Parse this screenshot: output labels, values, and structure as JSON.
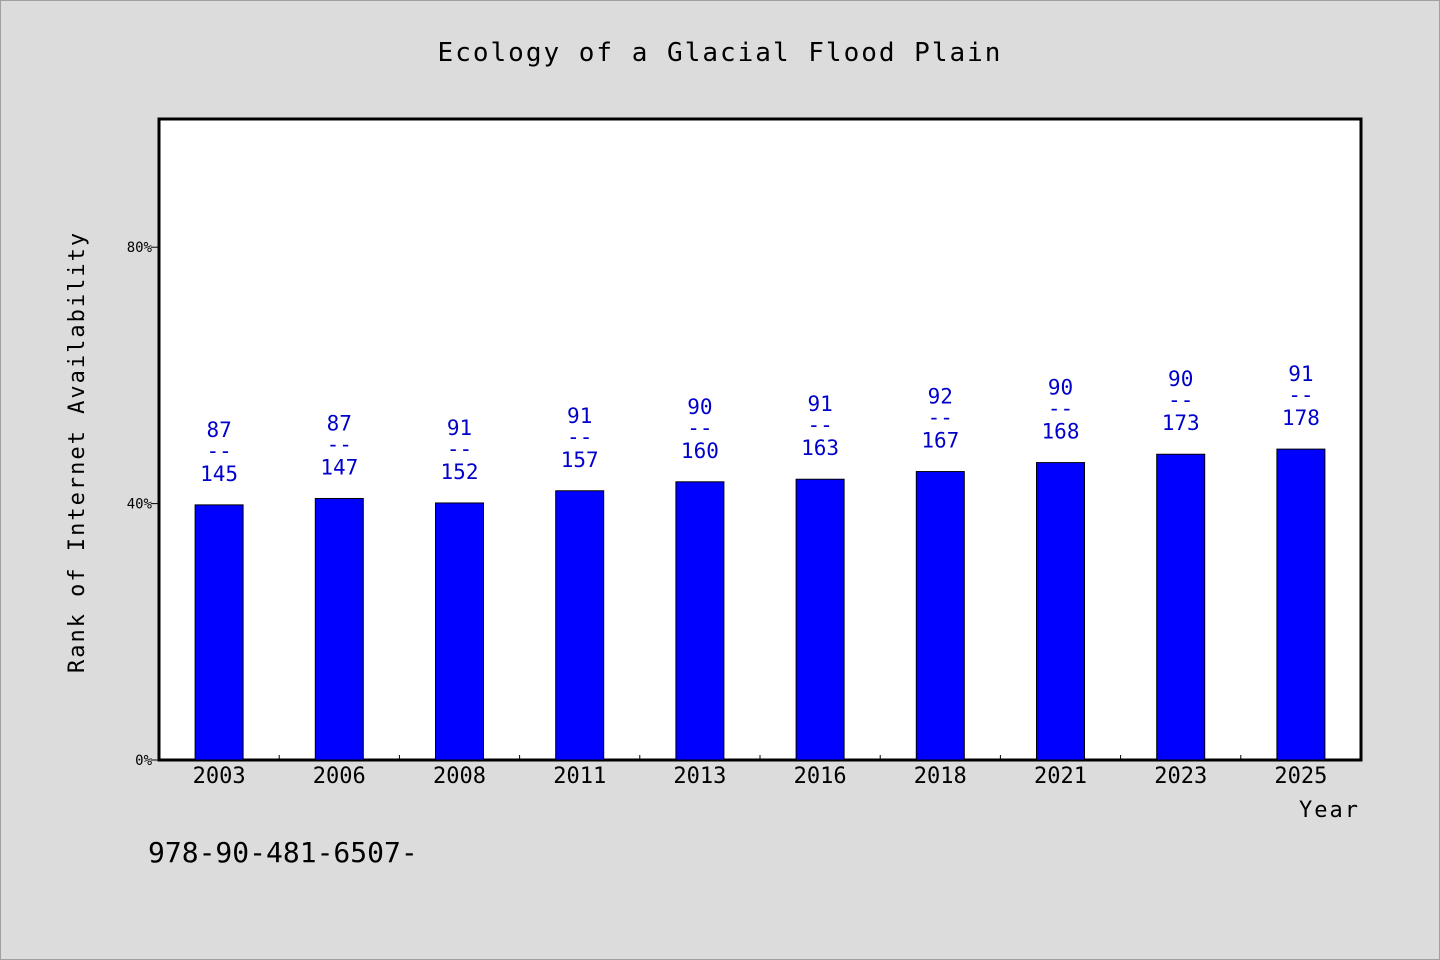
{
  "chart_data": {
    "type": "bar",
    "title": "Ecology of a Glacial Flood Plain",
    "xlabel": "Year",
    "ylabel": "Rank of Internet Availability",
    "categories": [
      "2003",
      "2006",
      "2008",
      "2011",
      "2013",
      "2016",
      "2018",
      "2021",
      "2023",
      "2025"
    ],
    "series": [
      {
        "values": [
          39.8,
          40.8,
          40.1,
          42.0,
          43.4,
          43.8,
          45.0,
          46.4,
          47.7,
          48.5
        ],
        "color": "#0000ff"
      }
    ],
    "data_labels": [
      {
        "top": "87",
        "sep": "--",
        "bottom": "145"
      },
      {
        "top": "87",
        "sep": "--",
        "bottom": "147"
      },
      {
        "top": "91",
        "sep": "--",
        "bottom": "152"
      },
      {
        "top": "91",
        "sep": "--",
        "bottom": "157"
      },
      {
        "top": "90",
        "sep": "--",
        "bottom": "160"
      },
      {
        "top": "91",
        "sep": "--",
        "bottom": "163"
      },
      {
        "top": "92",
        "sep": "--",
        "bottom": "167"
      },
      {
        "top": "90",
        "sep": "--",
        "bottom": "168"
      },
      {
        "top": "90",
        "sep": "--",
        "bottom": "173"
      },
      {
        "top": "91",
        "sep": "--",
        "bottom": "178"
      }
    ],
    "yticks": [
      {
        "value": 0,
        "label": "0%"
      },
      {
        "value": 40,
        "label": "40%"
      },
      {
        "value": 80,
        "label": "80%"
      }
    ],
    "ylim": [
      0,
      100
    ],
    "grid": false,
    "label_color": "#0000cc"
  },
  "footer_text": "978-90-481-6507-"
}
